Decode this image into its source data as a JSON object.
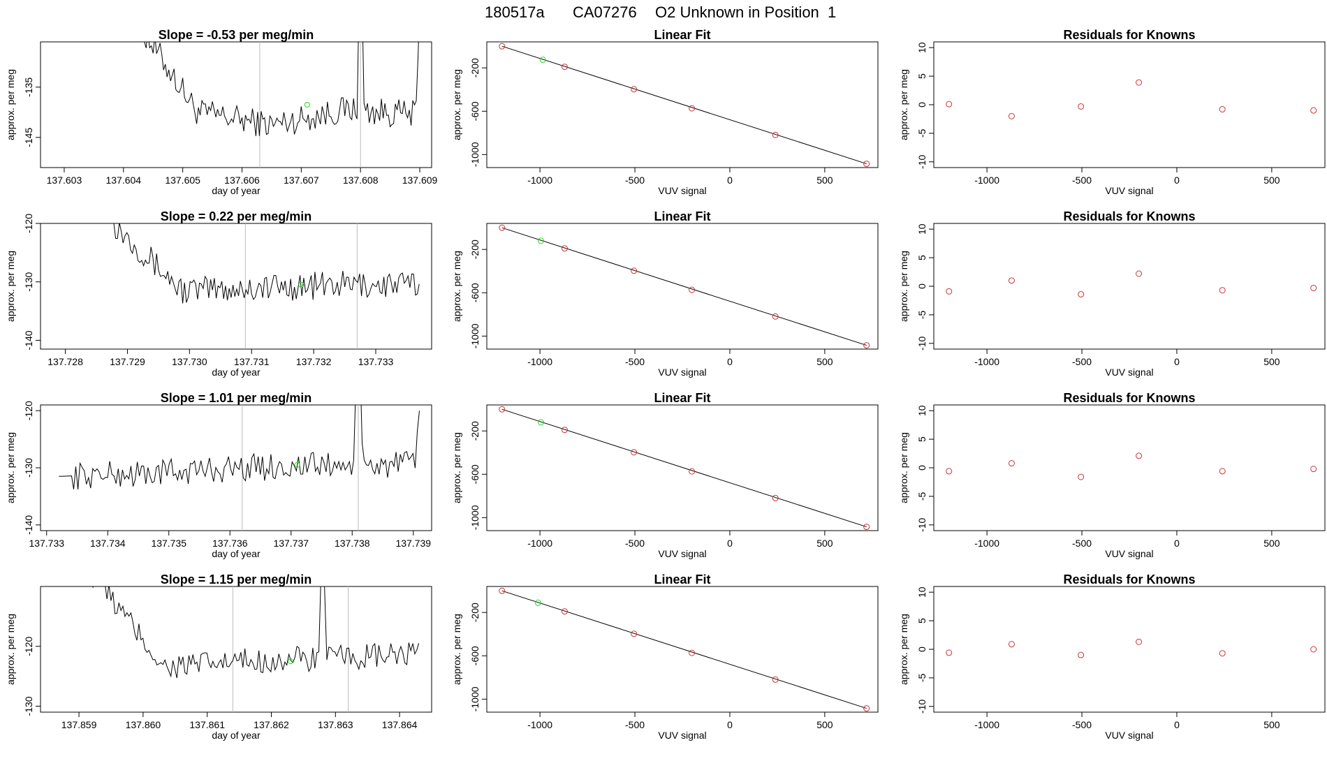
{
  "figure": {
    "title_date": "180517a",
    "title_tank": "CA07276",
    "title_desc": "O2 Unknown in Position  1"
  },
  "colors": {
    "line": "#000000",
    "known": "#cd3333",
    "unknown": "#22dd22",
    "vline": "#bbbbbb"
  },
  "chart_data": [
    {
      "type": "line",
      "title": "Slope =  -0.53  per meg/min",
      "xlabel": "day of year",
      "ylabel": "approx. per meg",
      "xlim": [
        137.6026,
        137.6092
      ],
      "ylim": [
        -151,
        -126
      ],
      "xticks": [
        137.603,
        137.604,
        137.605,
        137.606,
        137.607,
        137.608,
        137.609
      ],
      "xtick_labels": [
        "137.603",
        "137.604",
        "137.605",
        "137.606",
        "137.607",
        "137.608",
        "137.609"
      ],
      "yticks": [
        -145,
        -135
      ],
      "ytick_labels": [
        "-145",
        "-135"
      ],
      "vlines": [
        137.6063,
        137.608
      ],
      "series": {
        "x_start": 137.604,
        "x_end": 137.609,
        "baseline": [
          -118,
          -140.0,
          -142.5,
          -139.5,
          -140.5
        ],
        "noise_amp": 2.8,
        "spikes": [
          [
            137.608,
            -100
          ],
          [
            137.609,
            -118
          ]
        ]
      },
      "unknown_point": [
        137.6071,
        -138.5
      ]
    },
    {
      "type": "line",
      "title": "Slope =  0.22  per meg/min",
      "xlabel": "day of year",
      "ylabel": "approx. per meg",
      "xlim": [
        137.7276,
        137.7339
      ],
      "ylim": [
        -141.5,
        -120
      ],
      "xticks": [
        137.728,
        137.729,
        137.73,
        137.731,
        137.732,
        137.733
      ],
      "xtick_labels": [
        "137.728",
        "137.729",
        "137.730",
        "137.731",
        "137.732",
        "137.733"
      ],
      "yticks": [
        -140,
        -130,
        -120
      ],
      "ytick_labels": [
        "-140",
        "-130",
        "-120"
      ],
      "vlines": [
        137.7309,
        137.7327
      ],
      "series": {
        "x_start": 137.7286,
        "x_end": 137.7337,
        "baseline": [
          -118,
          -131.5,
          -131.0,
          -130.5,
          -130.5
        ],
        "noise_amp": 2.4,
        "spikes": []
      },
      "unknown_point": [
        137.7318,
        -130.5
      ]
    },
    {
      "type": "line",
      "title": "Slope =  1.01  per meg/min",
      "xlabel": "day of year",
      "ylabel": "approx. per meg",
      "xlim": [
        137.7329,
        137.7393
      ],
      "ylim": [
        -141,
        -119
      ],
      "xticks": [
        137.733,
        137.734,
        137.735,
        137.736,
        137.737,
        137.738,
        137.739
      ],
      "xtick_labels": [
        "137.733",
        "137.734",
        "137.735",
        "137.736",
        "137.737",
        "137.738",
        "137.739"
      ],
      "yticks": [
        -140,
        -130,
        -120
      ],
      "ytick_labels": [
        "-140",
        "-130",
        "-120"
      ],
      "vlines": [
        137.7362,
        137.7381
      ],
      "series": {
        "x_start": 137.7332,
        "x_end": 137.7391,
        "baseline": [
          -131.5,
          -131.0,
          -130.0,
          -129.5,
          -129.5
        ],
        "noise_amp": 2.4,
        "spikes": [
          [
            137.7381,
            -100
          ],
          [
            137.7391,
            -120
          ]
        ]
      },
      "unknown_point": [
        137.7371,
        -129.5
      ]
    },
    {
      "type": "line",
      "title": "Slope =  1.15  per meg/min",
      "xlabel": "day of year",
      "ylabel": "approx. per meg",
      "xlim": [
        137.8584,
        137.8645
      ],
      "ylim": [
        -131,
        -110
      ],
      "xticks": [
        137.859,
        137.86,
        137.861,
        137.862,
        137.863,
        137.864
      ],
      "xtick_labels": [
        "137.859",
        "137.860",
        "137.861",
        "137.862",
        "137.863",
        "137.864"
      ],
      "yticks": [
        -130,
        -120
      ],
      "ytick_labels": [
        "-130",
        "-120"
      ],
      "vlines": [
        137.8614,
        137.8632
      ],
      "series": {
        "x_start": 137.859,
        "x_end": 137.8643,
        "baseline": [
          -105,
          -123.5,
          -122.5,
          -122.0,
          -121.5
        ],
        "noise_amp": 2.2,
        "spikes": [
          [
            137.8628,
            -100
          ]
        ]
      },
      "unknown_point": [
        137.8623,
        -122.5
      ]
    },
    {
      "type": "scatter",
      "title": "Linear Fit",
      "xlabel": "VUV signal",
      "ylabel": "approx. per meg",
      "xlim": [
        -1280,
        780
      ],
      "ylim": [
        -1120,
        40
      ],
      "xticks": [
        -1000,
        -500,
        0,
        500
      ],
      "xtick_labels": [
        "-1000",
        "-500",
        "0",
        "500"
      ],
      "yticks": [
        -1000,
        -600,
        -200
      ],
      "ytick_labels": [
        "-1000",
        "-600",
        "-200"
      ],
      "line": [
        [
          -1200,
          0
        ],
        [
          720,
          -1085
        ]
      ],
      "knowns": [
        [
          -1200,
          0
        ],
        [
          -870,
          -190
        ],
        [
          -505,
          -397
        ],
        [
          -200,
          -573
        ],
        [
          240,
          -819
        ],
        [
          720,
          -1085
        ]
      ],
      "unknown": [
        [
          -985,
          -125
        ]
      ]
    },
    {
      "type": "scatter",
      "title": "Linear Fit",
      "xlabel": "VUV signal",
      "ylabel": "approx. per meg",
      "xlim": [
        -1280,
        780
      ],
      "ylim": [
        -1120,
        40
      ],
      "xticks": [
        -1000,
        -500,
        0,
        500
      ],
      "xtick_labels": [
        "-1000",
        "-500",
        "0",
        "500"
      ],
      "yticks": [
        -1000,
        -600,
        -200
      ],
      "ytick_labels": [
        "-1000",
        "-600",
        "-200"
      ],
      "line": [
        [
          -1200,
          0
        ],
        [
          720,
          -1085
        ]
      ],
      "knowns": [
        [
          -1200,
          0
        ],
        [
          -870,
          -190
        ],
        [
          -505,
          -397
        ],
        [
          -200,
          -573
        ],
        [
          240,
          -819
        ],
        [
          720,
          -1085
        ]
      ],
      "unknown": [
        [
          -995,
          -120
        ]
      ]
    },
    {
      "type": "scatter",
      "title": "Linear Fit",
      "xlabel": "VUV signal",
      "ylabel": "approx. per meg",
      "xlim": [
        -1280,
        780
      ],
      "ylim": [
        -1120,
        40
      ],
      "xticks": [
        -1000,
        -500,
        0,
        500
      ],
      "xtick_labels": [
        "-1000",
        "-500",
        "0",
        "500"
      ],
      "yticks": [
        -1000,
        -600,
        -200
      ],
      "ytick_labels": [
        "-1000",
        "-600",
        "-200"
      ],
      "line": [
        [
          -1200,
          0
        ],
        [
          720,
          -1085
        ]
      ],
      "knowns": [
        [
          -1200,
          0
        ],
        [
          -870,
          -190
        ],
        [
          -505,
          -397
        ],
        [
          -200,
          -573
        ],
        [
          240,
          -819
        ],
        [
          720,
          -1085
        ]
      ],
      "unknown": [
        [
          -995,
          -120
        ]
      ]
    },
    {
      "type": "scatter",
      "title": "Linear Fit",
      "xlabel": "VUV signal",
      "ylabel": "approx. per meg",
      "xlim": [
        -1280,
        780
      ],
      "ylim": [
        -1120,
        40
      ],
      "xticks": [
        -1000,
        -500,
        0,
        500
      ],
      "xtick_labels": [
        "-1000",
        "-500",
        "0",
        "500"
      ],
      "yticks": [
        -1000,
        -600,
        -200
      ],
      "ytick_labels": [
        "-1000",
        "-600",
        "-200"
      ],
      "line": [
        [
          -1200,
          0
        ],
        [
          720,
          -1085
        ]
      ],
      "knowns": [
        [
          -1200,
          0
        ],
        [
          -870,
          -190
        ],
        [
          -505,
          -397
        ],
        [
          -200,
          -573
        ],
        [
          240,
          -819
        ],
        [
          720,
          -1085
        ]
      ],
      "unknown": [
        [
          -1010,
          -110
        ]
      ]
    },
    {
      "type": "scatter",
      "title": "Residuals for Knowns",
      "xlabel": "VUV signal",
      "ylabel": "approx. per meg",
      "xlim": [
        -1280,
        780
      ],
      "ylim": [
        -11,
        11
      ],
      "xticks": [
        -1000,
        -500,
        0,
        500
      ],
      "xtick_labels": [
        "-1000",
        "-500",
        "0",
        "500"
      ],
      "yticks": [
        -10,
        -5,
        0,
        5,
        10
      ],
      "ytick_labels": [
        "-10",
        "-5",
        "0",
        "5",
        "10"
      ],
      "knowns": [
        [
          -1200,
          0.1
        ],
        [
          -870,
          -2.0
        ],
        [
          -505,
          -0.3
        ],
        [
          -200,
          3.9
        ],
        [
          240,
          -0.8
        ],
        [
          720,
          -1.0
        ]
      ]
    },
    {
      "type": "scatter",
      "title": "Residuals for Knowns",
      "xlabel": "VUV signal",
      "ylabel": "approx. per meg",
      "xlim": [
        -1280,
        780
      ],
      "ylim": [
        -11,
        11
      ],
      "xticks": [
        -1000,
        -500,
        0,
        500
      ],
      "xtick_labels": [
        "-1000",
        "-500",
        "0",
        "500"
      ],
      "yticks": [
        -10,
        -5,
        0,
        5,
        10
      ],
      "ytick_labels": [
        "-10",
        "-5",
        "0",
        "5",
        "10"
      ],
      "knowns": [
        [
          -1200,
          -0.9
        ],
        [
          -870,
          1.0
        ],
        [
          -505,
          -1.4
        ],
        [
          -200,
          2.2
        ],
        [
          240,
          -0.7
        ],
        [
          720,
          -0.3
        ]
      ]
    },
    {
      "type": "scatter",
      "title": "Residuals for Knowns",
      "xlabel": "VUV signal",
      "ylabel": "approx. per meg",
      "xlim": [
        -1280,
        780
      ],
      "ylim": [
        -11,
        11
      ],
      "xticks": [
        -1000,
        -500,
        0,
        500
      ],
      "xtick_labels": [
        "-1000",
        "-500",
        "0",
        "500"
      ],
      "yticks": [
        -10,
        -5,
        0,
        5,
        10
      ],
      "ytick_labels": [
        "-10",
        "-5",
        "0",
        "5",
        "10"
      ],
      "knowns": [
        [
          -1200,
          -0.6
        ],
        [
          -870,
          0.8
        ],
        [
          -505,
          -1.6
        ],
        [
          -200,
          2.1
        ],
        [
          240,
          -0.6
        ],
        [
          720,
          -0.2
        ]
      ]
    },
    {
      "type": "scatter",
      "title": "Residuals for Knowns",
      "xlabel": "VUV signal",
      "ylabel": "approx. per meg",
      "xlim": [
        -1280,
        780
      ],
      "ylim": [
        -11,
        11
      ],
      "xticks": [
        -1000,
        -500,
        0,
        500
      ],
      "xtick_labels": [
        "-1000",
        "-500",
        "0",
        "500"
      ],
      "yticks": [
        -10,
        -5,
        0,
        5,
        10
      ],
      "ytick_labels": [
        "-10",
        "-5",
        "0",
        "5",
        "10"
      ],
      "knowns": [
        [
          -1200,
          -0.6
        ],
        [
          -870,
          0.9
        ],
        [
          -505,
          -1.0
        ],
        [
          -200,
          1.3
        ],
        [
          240,
          -0.7
        ],
        [
          720,
          0.0
        ]
      ]
    }
  ]
}
